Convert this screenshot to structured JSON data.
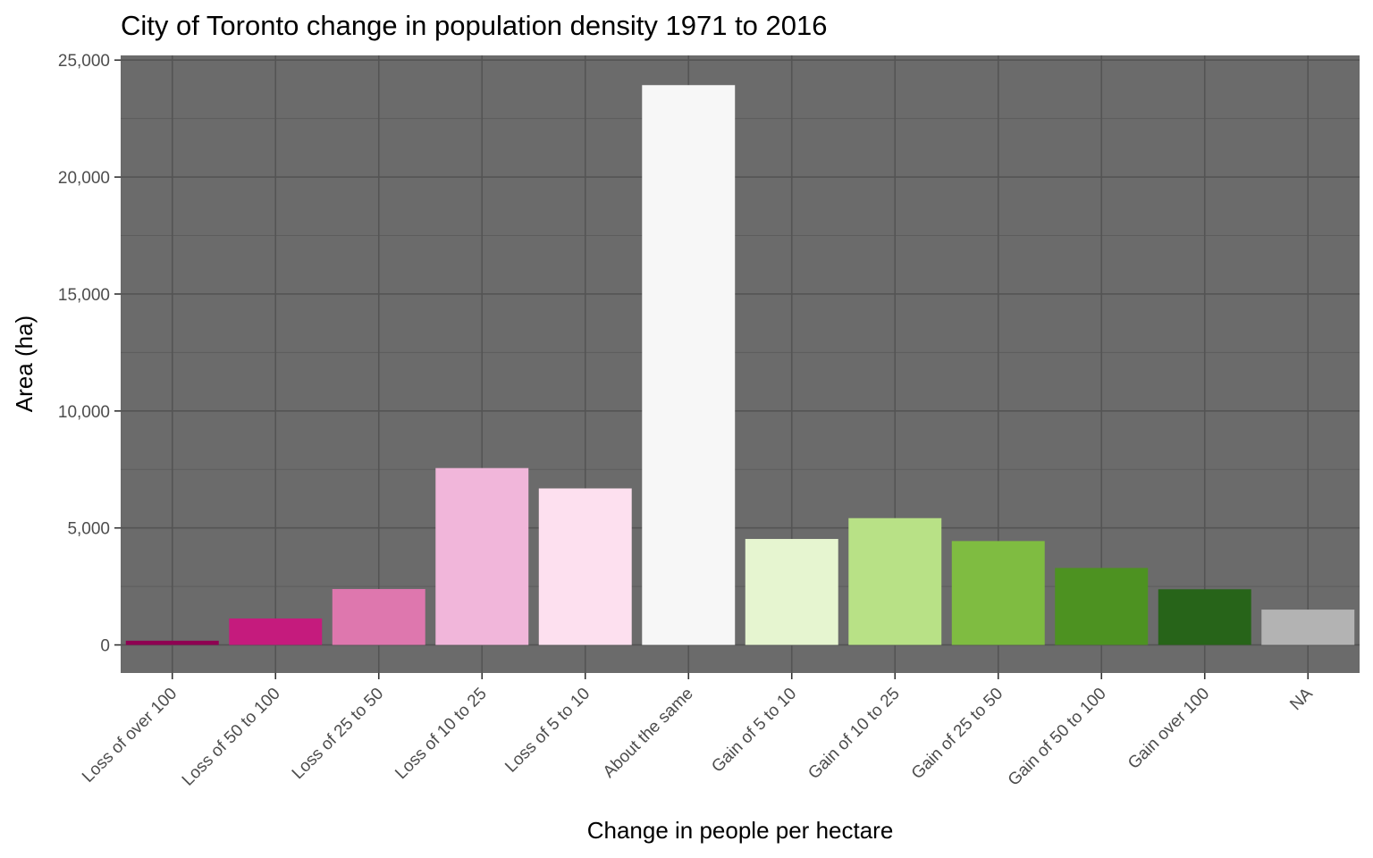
{
  "chart_data": {
    "type": "bar",
    "title": "City of Toronto change in population density 1971 to 2016",
    "xlabel": "Change in people per hectare",
    "ylabel": "Area (ha)",
    "ylim": [
      -1200,
      25200
    ],
    "yticks": [
      0,
      5000,
      10000,
      15000,
      20000,
      25000
    ],
    "ytick_labels": [
      "0",
      "5,000",
      "10,000",
      "15,000",
      "20,000",
      "25,000"
    ],
    "grid": true,
    "panel_color": "#6b6b6b",
    "categories": [
      "Loss of over 100",
      "Loss of 50 to 100",
      "Loss of 25 to 50",
      "Loss of 10 to 25",
      "Loss of 5 to 10",
      "About the same",
      "Gain of 5  to 10",
      "Gain of 10 to 25",
      "Gain of 25 to 50",
      "Gain of 50 to 100",
      "Gain over 100",
      "NA"
    ],
    "values": [
      180,
      1130,
      2390,
      7560,
      6690,
      23930,
      4530,
      5420,
      4440,
      3290,
      2380,
      1510
    ],
    "colors": [
      "#8e0152",
      "#c51b7d",
      "#de77ae",
      "#f1b6da",
      "#fde0ef",
      "#f7f7f7",
      "#e6f5d0",
      "#b8e186",
      "#7fbc41",
      "#4d9221",
      "#276419",
      "#b3b3b3"
    ]
  }
}
